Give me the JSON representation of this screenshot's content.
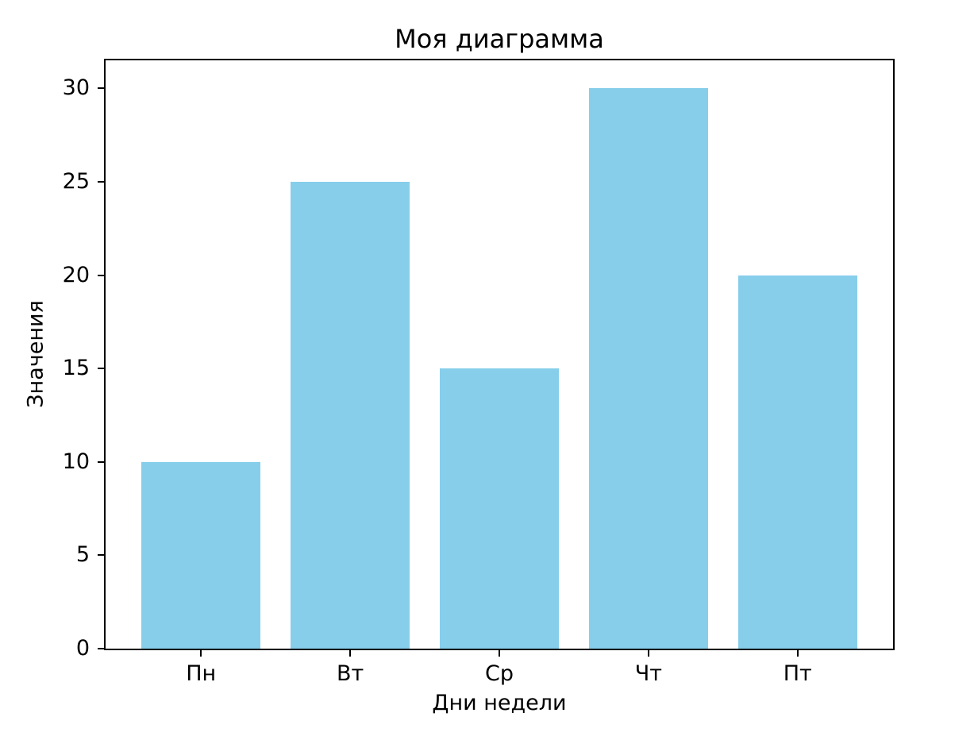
{
  "chart_data": {
    "type": "bar",
    "title": "Моя диаграмма",
    "xlabel": "Дни недели",
    "ylabel": "Значения",
    "categories": [
      "Пн",
      "Вт",
      "Ср",
      "Чт",
      "Пт"
    ],
    "values": [
      10,
      25,
      15,
      30,
      20
    ],
    "yticks": [
      0,
      5,
      10,
      15,
      20,
      25,
      30
    ],
    "ylim": [
      0,
      31.5
    ],
    "xlim": [
      -0.64,
      4.64
    ],
    "bar_width": 0.8,
    "bar_color": "#87CEEB",
    "text_color": "#000000",
    "background": "#FFFFFF",
    "grid": false,
    "legend": false
  }
}
